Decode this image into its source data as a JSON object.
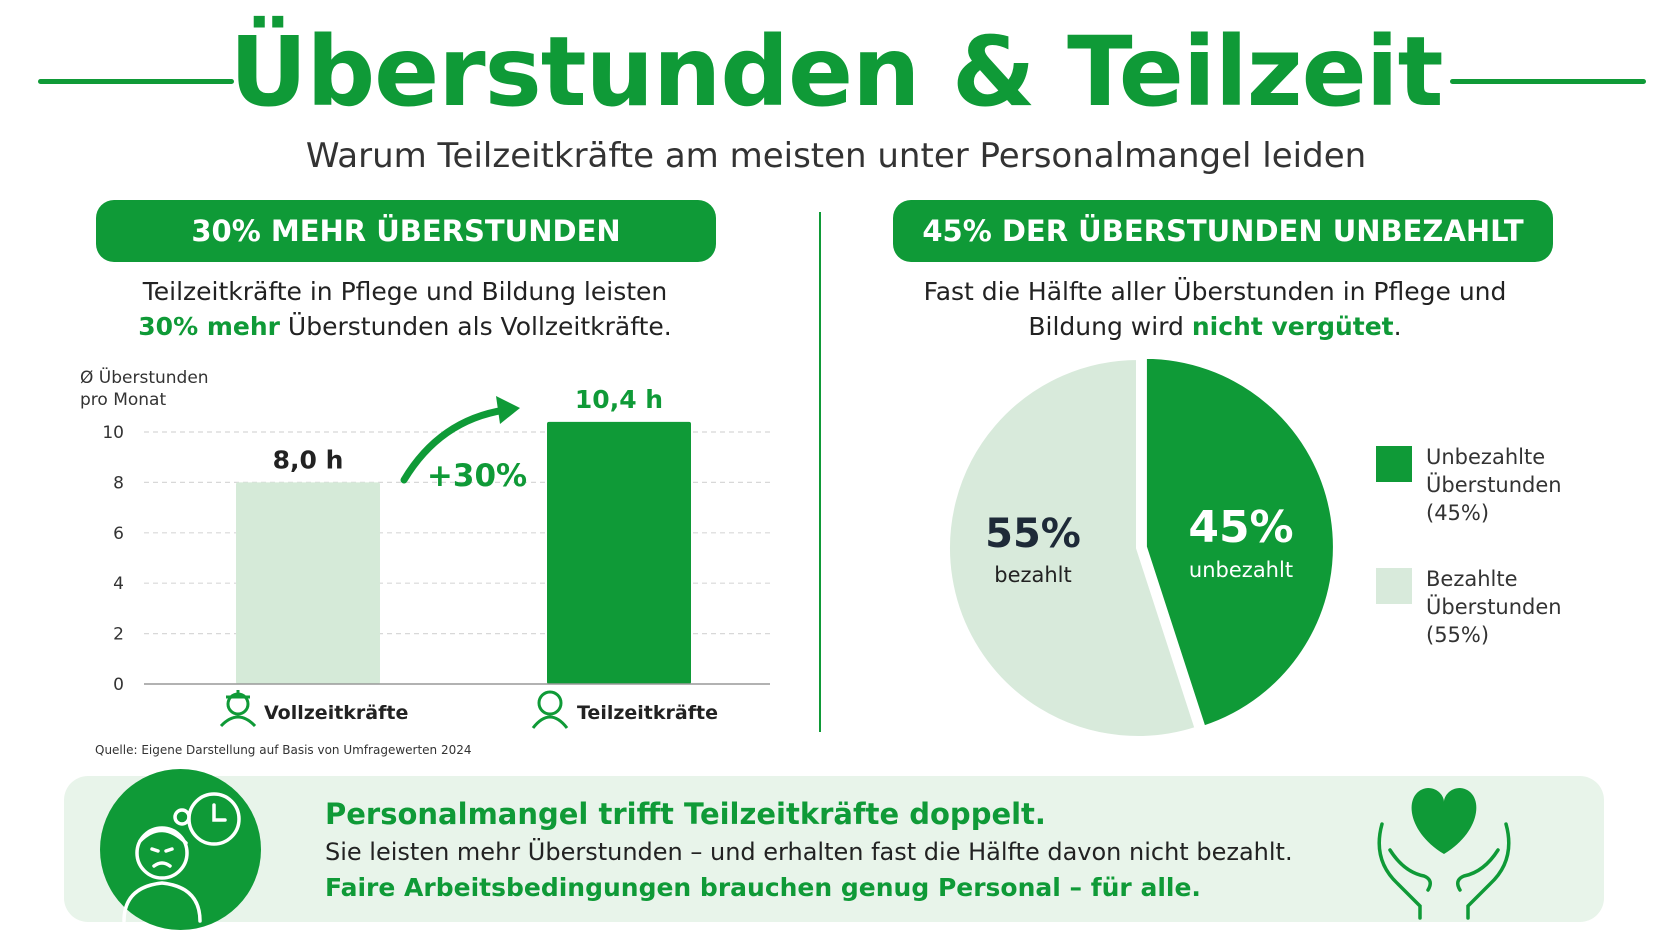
{
  "header": {
    "title": "Überstunden & Teilzeit",
    "subtitle": "Warum Teilzeitkräfte am meisten unter Personalmangel leiden"
  },
  "left": {
    "pill": "30% MEHR ÜBERSTUNDEN",
    "desc_line1": "Teilzeitkräfte in Pflege und Bildung leisten",
    "desc_line2_highlight": "30% mehr",
    "desc_line2_rest": " Überstunden als Vollzeitkräfte.",
    "source": "Quelle: Eigene Darstellung auf Basis von Umfragewerten 2024"
  },
  "right": {
    "pill": "45% DER ÜBERSTUNDEN UNBEZAHLT",
    "desc_line1": "Fast die Hälfte aller Überstunden in Pflege und",
    "desc_line2_start": "Bildung wird ",
    "desc_line2_highlight": "nicht vergütet",
    "desc_line2_end": "."
  },
  "chart_data": [
    {
      "type": "bar",
      "ylabel_line1": "Ø Überstunden",
      "ylabel_line2": "pro Monat",
      "categories": [
        "Vollzeitkräfte",
        "Teilzeitkräfte"
      ],
      "values": [
        8.0,
        10.4
      ],
      "value_labels": [
        "8,0 h",
        "10,4 h"
      ],
      "yticks": [
        "0",
        "2",
        "4",
        "6",
        "8",
        "10"
      ],
      "ylim": [
        0,
        10
      ],
      "grid": true,
      "annotation": "+30%",
      "category_icons": [
        "nurse-icon",
        "person-icon"
      ],
      "colors": [
        "#d5ead8",
        "#0f9a37"
      ]
    },
    {
      "type": "pie",
      "slices": [
        {
          "label": "unbezahlt",
          "value": 45,
          "display": "45%",
          "color": "#0f9a37"
        },
        {
          "label": "bezahlt",
          "value": 55,
          "display": "55%",
          "color": "#d8eadb"
        }
      ],
      "legend": [
        {
          "lines": [
            "Unbezahlte",
            "Überstunden",
            "(45%)"
          ],
          "color": "#0f9a37"
        },
        {
          "lines": [
            "Bezahlte",
            "Überstunden",
            "(55%)"
          ],
          "color": "#d8eadb"
        }
      ],
      "legend_position": "right"
    }
  ],
  "banner": {
    "line1": "Personalmangel trifft Teilzeitkräfte doppelt.",
    "line2": "Sie leisten mehr Überstunden – und erhalten fast die Hälfte davon nicht bezahlt.",
    "line3": "Faire Arbeitsbedingungen brauchen genug Personal – für alle.",
    "icons": [
      "worried-worker-icon",
      "clock-icon",
      "heart-hands-icon"
    ]
  },
  "colors": {
    "accent": "#0f9a37",
    "light": "#d5ead8",
    "banner_bg": "#e8f4ea"
  }
}
